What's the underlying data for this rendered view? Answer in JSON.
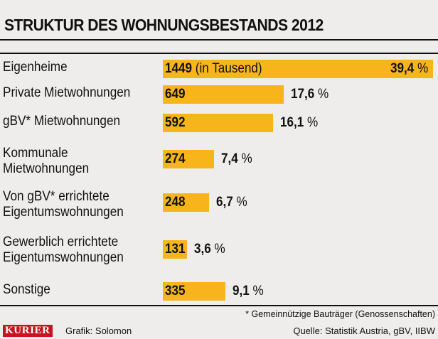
{
  "header": {
    "title": "STRUKTUR DES WOHNUNGSBESTANDS 2012"
  },
  "chart_data": {
    "type": "bar",
    "title": "STRUKTUR DES WOHNUNGSBESTANDS 2012",
    "orientation": "horizontal",
    "unit_note": "(in Tausend)",
    "categories": [
      [
        "Eigenheime"
      ],
      [
        "Private Mietwohnungen"
      ],
      [
        "gBV* Mietwohnungen"
      ],
      [
        "Kommunale",
        "Mietwohnungen"
      ],
      [
        "Von gBV* errichtete",
        "Eigentumswohnungen"
      ],
      [
        "Gewerblich errichtete",
        "Eigentumswohnungen"
      ],
      [
        "Sonstige"
      ]
    ],
    "values": [
      1449,
      649,
      592,
      274,
      248,
      131,
      335
    ],
    "value_labels": [
      "1449",
      "649",
      "592",
      "274",
      "248",
      "131",
      "335"
    ],
    "percent_labels": [
      "39,4",
      "17,6",
      "16,1",
      "7,4",
      "6,7",
      "3,6",
      "9,1"
    ],
    "percent_sign": "%",
    "bar_color": "#f7b41b",
    "xlim": [
      0,
      1449
    ]
  },
  "footer": {
    "footnote": "* Gemeinnützige Bauträger (Genossenschaften)",
    "logo": "KURIER",
    "credit": "Grafik: Solomon",
    "source": "Quelle: Statistik Austria, gBV, IIBW"
  }
}
